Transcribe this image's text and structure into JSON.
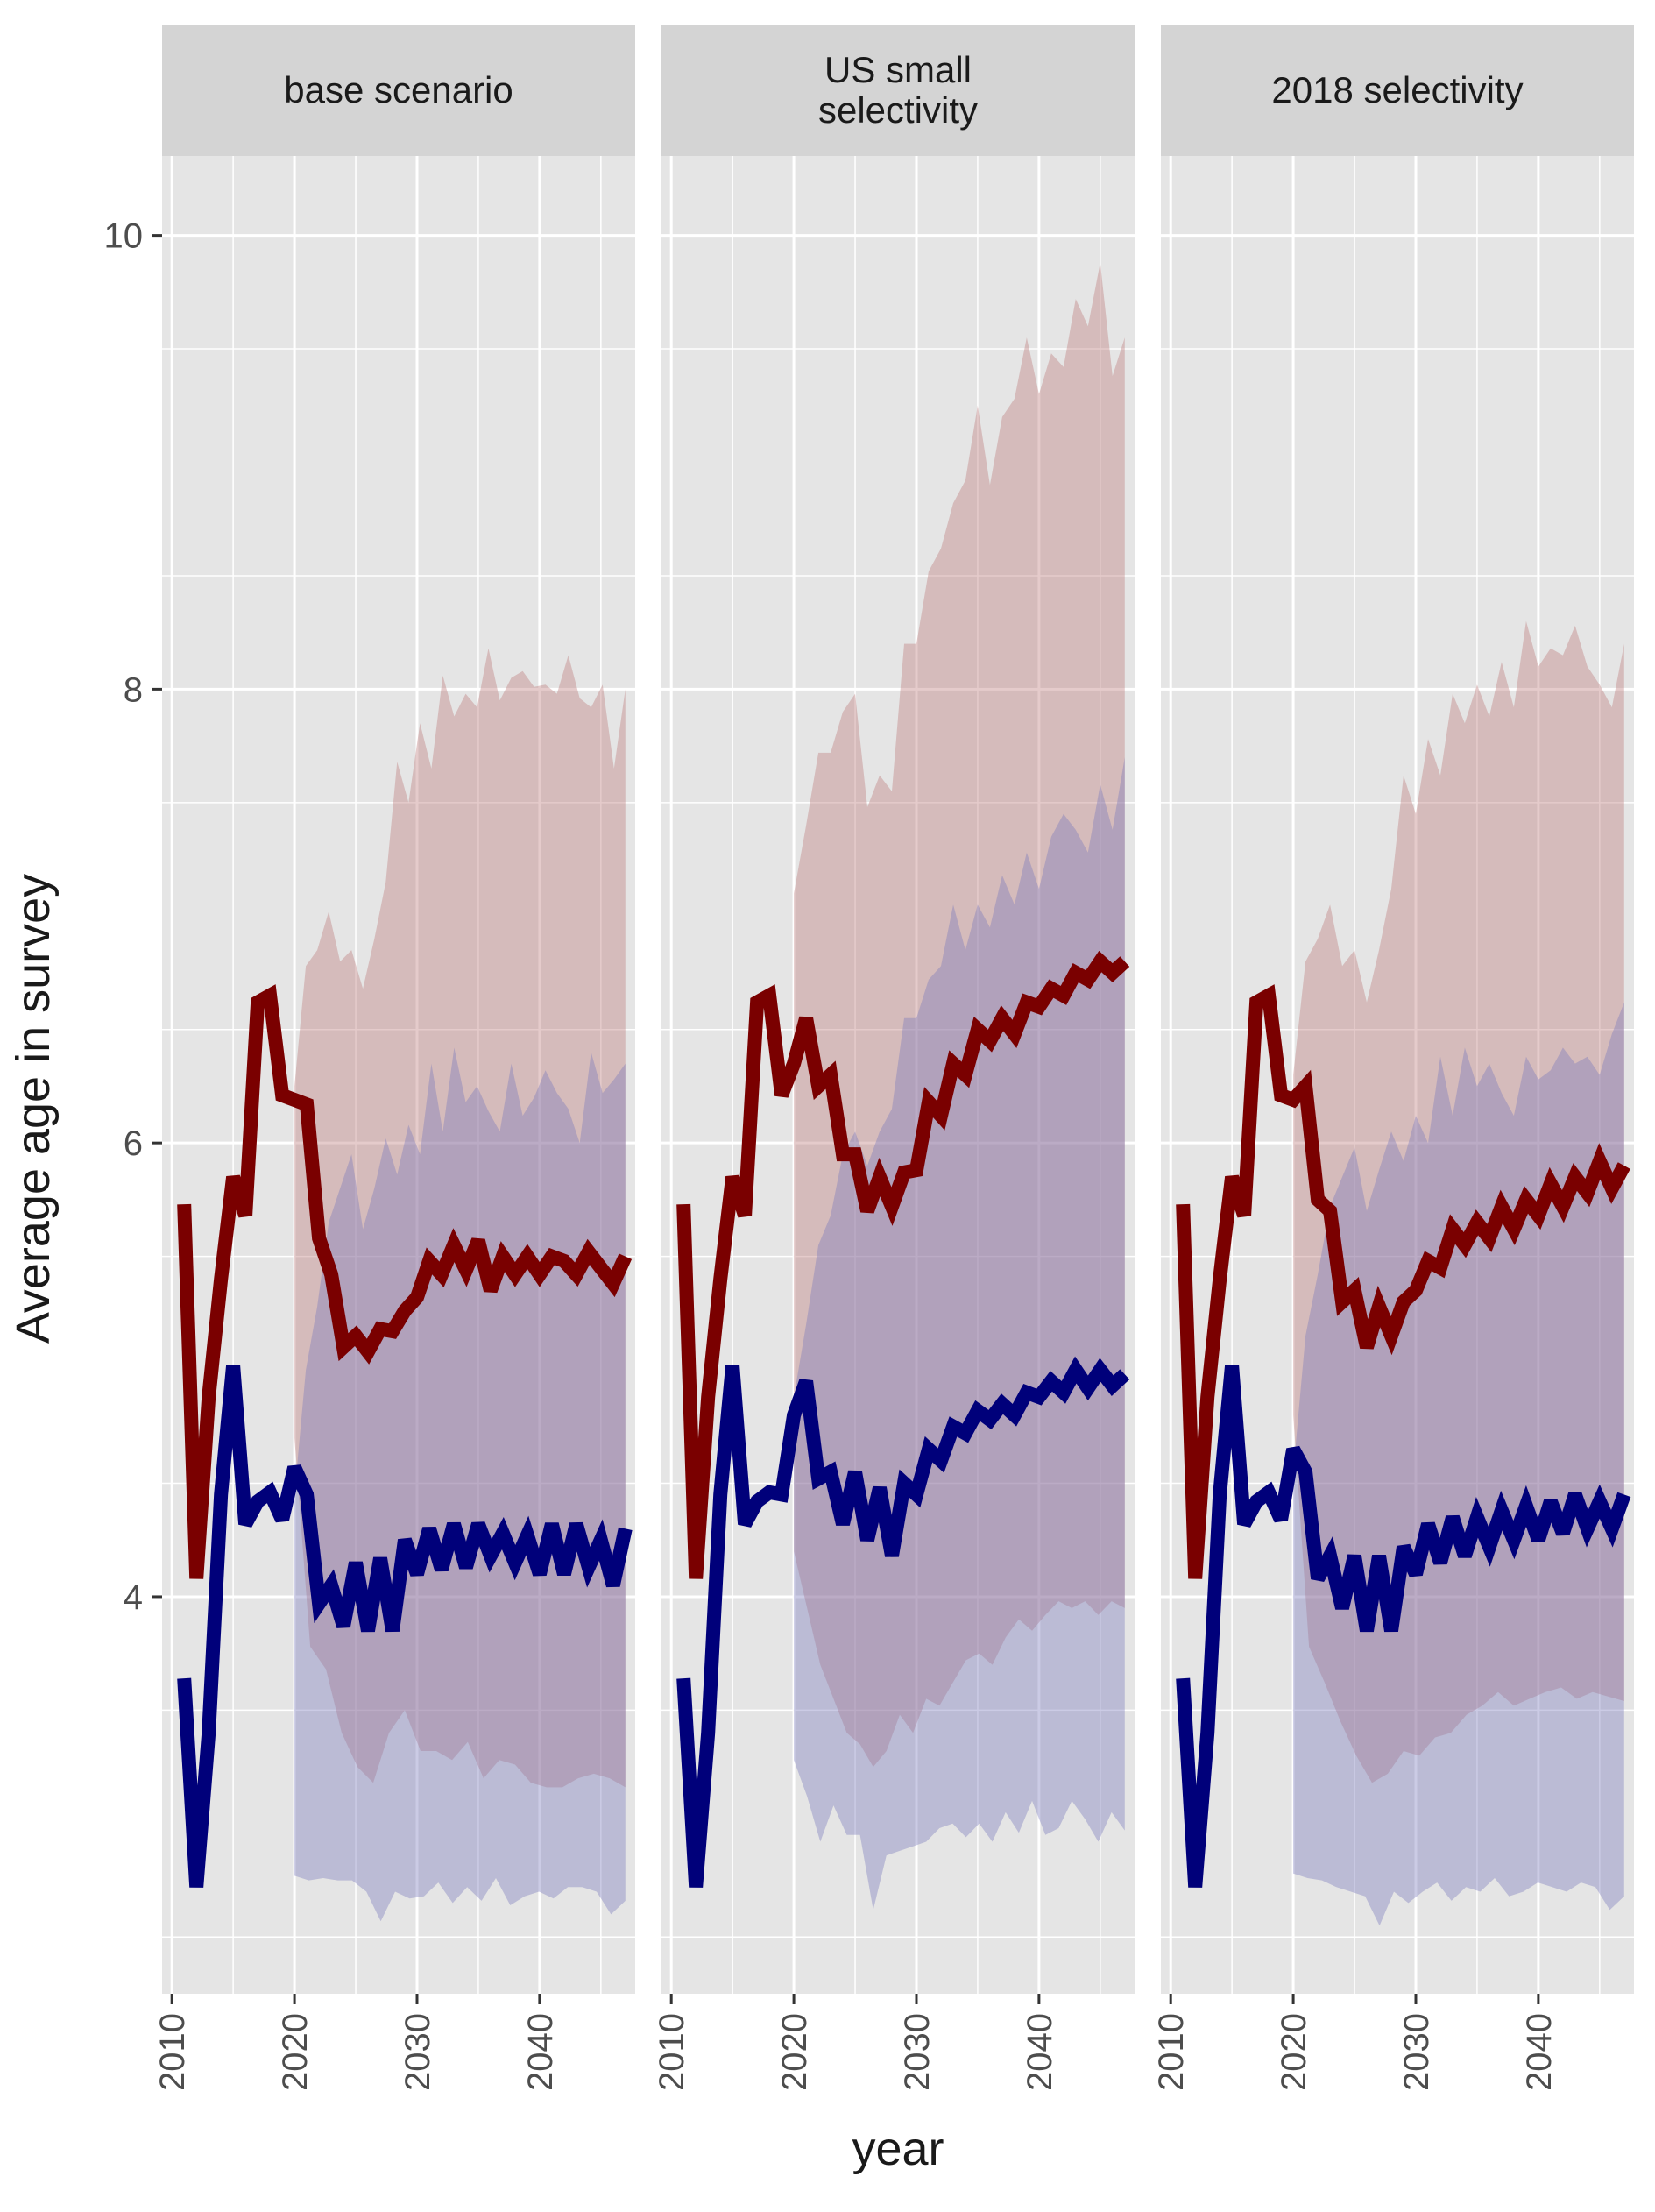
{
  "chart_data": {
    "type": "line",
    "ylabel": "Average age in survey",
    "xlabel": "year",
    "ylim": [
      2.25,
      10.35
    ],
    "xlim": [
      2009.2,
      2047.8
    ],
    "y_ticks": [
      4,
      6,
      8,
      10
    ],
    "x_ticks": [
      2010,
      2020,
      2030,
      2040
    ],
    "colors": {
      "red_line": "#7a0000",
      "blue_line": "#00007a",
      "red_band": "#bb7777",
      "blue_band": "#7777bb",
      "panel_bg": "#e5e5e5",
      "strip_bg": "#d4d4d4",
      "grid": "#ffffff"
    },
    "panels": [
      {
        "title": "base scenario",
        "x": [
          2011,
          2012,
          2013,
          2014,
          2015,
          2016,
          2017,
          2018,
          2019,
          2020,
          2021,
          2022,
          2023,
          2024,
          2025,
          2026,
          2027,
          2028,
          2029,
          2030,
          2031,
          2032,
          2033,
          2034,
          2035,
          2036,
          2037,
          2038,
          2039,
          2040,
          2041,
          2042,
          2043,
          2044,
          2045,
          2046,
          2047
        ],
        "red_median": [
          5.73,
          4.08,
          4.88,
          5.4,
          5.85,
          5.68,
          6.62,
          6.65,
          6.21,
          6.19,
          6.17,
          5.58,
          5.42,
          5.1,
          5.15,
          5.08,
          5.18,
          5.17,
          5.26,
          5.32,
          5.48,
          5.42,
          5.55,
          5.44,
          5.57,
          5.35,
          5.5,
          5.42,
          5.5,
          5.42,
          5.5,
          5.48,
          5.42,
          5.52,
          5.45,
          5.38,
          5.5
        ],
        "blue_median": [
          3.64,
          2.72,
          3.4,
          4.45,
          5.02,
          4.32,
          4.42,
          4.46,
          4.34,
          4.57,
          4.45,
          3.97,
          4.05,
          3.87,
          4.15,
          3.85,
          4.17,
          3.85,
          4.25,
          4.1,
          4.3,
          4.12,
          4.32,
          4.13,
          4.32,
          4.18,
          4.28,
          4.15,
          4.27,
          4.1,
          4.32,
          4.1,
          4.32,
          4.13,
          4.25,
          4.05,
          4.3
        ],
        "red_lower": [
          4.7,
          3.78,
          3.68,
          3.4,
          3.25,
          3.18,
          3.4,
          3.5,
          3.32,
          3.32,
          3.28,
          3.36,
          3.2,
          3.28,
          3.26,
          3.18,
          3.16,
          3.16,
          3.2,
          3.22,
          3.2,
          3.16
        ],
        "red_upper": [
          6.25,
          6.78,
          6.85,
          7.02,
          6.8,
          6.85,
          6.68,
          6.9,
          7.15,
          7.68,
          7.5,
          7.85,
          7.65,
          8.06,
          7.88,
          7.98,
          7.92,
          8.18,
          7.95,
          8.05,
          8.08,
          8.01,
          8.02,
          7.98,
          8.15,
          7.96,
          7.92,
          8.02,
          7.65,
          8.0
        ],
        "blue_lower": [
          2.77,
          2.75,
          2.76,
          2.75,
          2.75,
          2.7,
          2.57,
          2.7,
          2.67,
          2.68,
          2.74,
          2.65,
          2.72,
          2.66,
          2.76,
          2.64,
          2.68,
          2.7,
          2.67,
          2.72,
          2.72,
          2.7,
          2.6,
          2.66
        ],
        "blue_upper": [
          4.45,
          5.0,
          5.28,
          5.65,
          5.8,
          5.95,
          5.62,
          5.8,
          6.02,
          5.86,
          6.08,
          5.95,
          6.35,
          6.05,
          6.42,
          6.18,
          6.25,
          6.14,
          6.05,
          6.35,
          6.12,
          6.2,
          6.32,
          6.22,
          6.15,
          6.0,
          6.4,
          6.22,
          6.28,
          6.35
        ]
      },
      {
        "title": "US small\nselectivity",
        "x": [
          2011,
          2012,
          2013,
          2014,
          2015,
          2016,
          2017,
          2018,
          2019,
          2020,
          2021,
          2022,
          2023,
          2024,
          2025,
          2026,
          2027,
          2028,
          2029,
          2030,
          2031,
          2032,
          2033,
          2034,
          2035,
          2036,
          2037,
          2038,
          2039,
          2040,
          2041,
          2042,
          2043,
          2044,
          2045,
          2046,
          2047
        ],
        "red_median": [
          5.73,
          4.08,
          4.88,
          5.4,
          5.85,
          5.68,
          6.62,
          6.65,
          6.21,
          6.35,
          6.55,
          6.25,
          6.3,
          5.95,
          5.95,
          5.7,
          5.85,
          5.72,
          5.87,
          5.88,
          6.18,
          6.12,
          6.35,
          6.3,
          6.5,
          6.45,
          6.55,
          6.48,
          6.62,
          6.6,
          6.68,
          6.65,
          6.75,
          6.72,
          6.8,
          6.75,
          6.8
        ],
        "blue_median": [
          3.64,
          2.72,
          3.4,
          4.45,
          5.02,
          4.32,
          4.42,
          4.46,
          4.45,
          4.8,
          4.95,
          4.52,
          4.55,
          4.32,
          4.55,
          4.25,
          4.48,
          4.18,
          4.5,
          4.45,
          4.65,
          4.6,
          4.75,
          4.72,
          4.82,
          4.78,
          4.85,
          4.8,
          4.9,
          4.88,
          4.95,
          4.9,
          5.0,
          4.92,
          5.0,
          4.93,
          4.98
        ],
        "red_lower": [
          4.2,
          3.95,
          3.7,
          3.55,
          3.4,
          3.35,
          3.25,
          3.32,
          3.48,
          3.4,
          3.55,
          3.52,
          3.62,
          3.72,
          3.75,
          3.7,
          3.82,
          3.9,
          3.85,
          3.92,
          3.98,
          3.95,
          3.98,
          3.92,
          3.98,
          3.95
        ],
        "red_upper": [
          7.1,
          7.4,
          7.72,
          7.72,
          7.9,
          7.98,
          7.48,
          7.62,
          7.55,
          8.2,
          8.2,
          8.52,
          8.62,
          8.82,
          8.92,
          9.25,
          8.9,
          9.2,
          9.28,
          9.55,
          9.3,
          9.48,
          9.42,
          9.72,
          9.6,
          9.88,
          9.38,
          9.55
        ],
        "blue_lower": [
          3.28,
          3.12,
          2.92,
          3.08,
          2.95,
          2.95,
          2.62,
          2.86,
          2.88,
          2.9,
          2.92,
          2.98,
          3.0,
          2.94,
          3.0,
          2.92,
          3.05,
          2.96,
          3.1,
          2.95,
          2.98,
          3.1,
          3.02,
          2.92,
          3.05,
          2.97
        ],
        "blue_upper": [
          4.88,
          5.2,
          5.55,
          5.68,
          5.95,
          6.05,
          5.9,
          6.05,
          6.15,
          6.55,
          6.55,
          6.72,
          6.78,
          7.05,
          6.85,
          7.05,
          6.95,
          7.18,
          7.05,
          7.28,
          7.12,
          7.35,
          7.45,
          7.38,
          7.28,
          7.58,
          7.38,
          7.7
        ]
      },
      {
        "title": "2018 selectivity",
        "x": [
          2011,
          2012,
          2013,
          2014,
          2015,
          2016,
          2017,
          2018,
          2019,
          2020,
          2021,
          2022,
          2023,
          2024,
          2025,
          2026,
          2027,
          2028,
          2029,
          2030,
          2031,
          2032,
          2033,
          2034,
          2035,
          2036,
          2037,
          2038,
          2039,
          2040,
          2041,
          2042,
          2043,
          2044,
          2045,
          2046,
          2047
        ],
        "red_median": [
          5.73,
          4.08,
          4.88,
          5.4,
          5.85,
          5.68,
          6.62,
          6.65,
          6.21,
          6.19,
          6.25,
          5.75,
          5.7,
          5.3,
          5.35,
          5.1,
          5.28,
          5.15,
          5.3,
          5.35,
          5.48,
          5.45,
          5.62,
          5.55,
          5.65,
          5.58,
          5.72,
          5.62,
          5.75,
          5.68,
          5.82,
          5.72,
          5.85,
          5.78,
          5.92,
          5.8,
          5.9
        ],
        "blue_median": [
          3.64,
          2.72,
          3.4,
          4.45,
          5.02,
          4.32,
          4.42,
          4.46,
          4.34,
          4.65,
          4.55,
          4.08,
          4.18,
          3.95,
          4.18,
          3.85,
          4.18,
          3.85,
          4.22,
          4.1,
          4.32,
          4.15,
          4.35,
          4.18,
          4.35,
          4.22,
          4.38,
          4.25,
          4.4,
          4.25,
          4.42,
          4.28,
          4.45,
          4.3,
          4.42,
          4.3,
          4.45
        ],
        "red_lower": [
          4.8,
          3.78,
          3.62,
          3.45,
          3.3,
          3.18,
          3.22,
          3.32,
          3.3,
          3.38,
          3.4,
          3.48,
          3.52,
          3.58,
          3.52,
          3.55,
          3.58,
          3.6,
          3.55,
          3.58,
          3.56,
          3.54
        ],
        "red_upper": [
          6.3,
          6.8,
          6.9,
          7.05,
          6.78,
          6.85,
          6.62,
          6.85,
          7.12,
          7.62,
          7.45,
          7.78,
          7.62,
          7.98,
          7.85,
          8.02,
          7.88,
          8.12,
          7.92,
          8.3,
          8.1,
          8.18,
          8.15,
          8.28,
          8.1,
          8.02,
          7.92,
          8.2
        ],
        "blue_lower": [
          2.78,
          2.76,
          2.75,
          2.72,
          2.7,
          2.68,
          2.55,
          2.7,
          2.65,
          2.7,
          2.74,
          2.66,
          2.72,
          2.7,
          2.76,
          2.68,
          2.7,
          2.74,
          2.72,
          2.7,
          2.74,
          2.72,
          2.62,
          2.68
        ],
        "blue_upper": [
          4.55,
          5.15,
          5.42,
          5.72,
          5.85,
          5.98,
          5.7,
          5.88,
          6.05,
          5.92,
          6.12,
          6.0,
          6.38,
          6.12,
          6.42,
          6.25,
          6.35,
          6.22,
          6.12,
          6.38,
          6.28,
          6.32,
          6.42,
          6.35,
          6.38,
          6.3,
          6.48,
          6.62
        ]
      }
    ]
  }
}
